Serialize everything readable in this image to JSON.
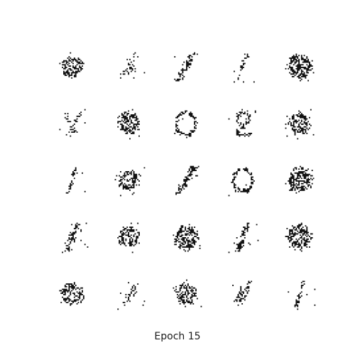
{
  "caption": "Epoch 15",
  "colors": {
    "background": "#ffffff",
    "ink": "#111111"
  },
  "grid": {
    "rows": 5,
    "cols": 5
  },
  "samples": [
    {
      "row": 0,
      "col": 0,
      "shape": "blob-loop"
    },
    {
      "row": 0,
      "col": 1,
      "shape": "diagonal-blob"
    },
    {
      "row": 0,
      "col": 2,
      "shape": "diagonal-stroke"
    },
    {
      "row": 0,
      "col": 3,
      "shape": "sparse-stroke"
    },
    {
      "row": 0,
      "col": 4,
      "shape": "dense-loop"
    },
    {
      "row": 1,
      "col": 0,
      "shape": "sparse-v"
    },
    {
      "row": 1,
      "col": 1,
      "shape": "blob-loop"
    },
    {
      "row": 1,
      "col": 2,
      "shape": "zero-ring"
    },
    {
      "row": 1,
      "col": 3,
      "shape": "two-shape"
    },
    {
      "row": 1,
      "col": 4,
      "shape": "blob-loop"
    },
    {
      "row": 2,
      "col": 0,
      "shape": "sparse-stroke"
    },
    {
      "row": 2,
      "col": 1,
      "shape": "blob-loop"
    },
    {
      "row": 2,
      "col": 2,
      "shape": "diagonal-stroke"
    },
    {
      "row": 2,
      "col": 3,
      "shape": "zero-ring"
    },
    {
      "row": 2,
      "col": 4,
      "shape": "dense-loop"
    },
    {
      "row": 3,
      "col": 0,
      "shape": "one-stroke"
    },
    {
      "row": 3,
      "col": 1,
      "shape": "blob-loop"
    },
    {
      "row": 3,
      "col": 2,
      "shape": "dense-loop"
    },
    {
      "row": 3,
      "col": 3,
      "shape": "one-stroke"
    },
    {
      "row": 3,
      "col": 4,
      "shape": "dense-loop"
    },
    {
      "row": 4,
      "col": 0,
      "shape": "blob-loop"
    },
    {
      "row": 4,
      "col": 1,
      "shape": "diagonal-blob"
    },
    {
      "row": 4,
      "col": 2,
      "shape": "blob-loop"
    },
    {
      "row": 4,
      "col": 3,
      "shape": "diagonal-blob"
    },
    {
      "row": 4,
      "col": 4,
      "shape": "sparse-stroke"
    }
  ]
}
